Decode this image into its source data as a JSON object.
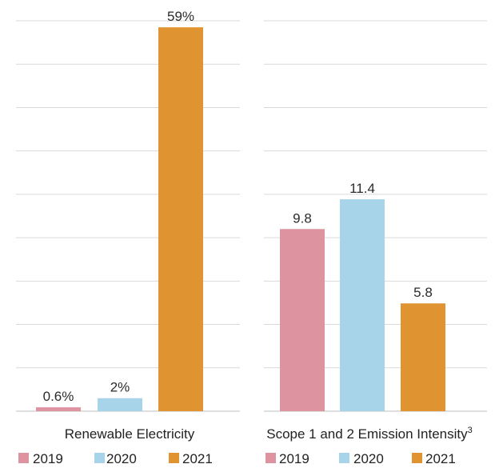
{
  "colors": {
    "2019": "#dd93a0",
    "2020": "#a8d4e9",
    "2021": "#e09431"
  },
  "chart_data": [
    {
      "type": "bar",
      "title": "Renewable Electricity",
      "title_superscript": "",
      "categories": [
        "2019",
        "2020",
        "2021"
      ],
      "values": [
        0.6,
        2,
        59
      ],
      "data_labels": [
        "0.6%",
        "2%",
        "59%"
      ],
      "ylim": [
        0,
        60
      ],
      "grid": true,
      "legend": {
        "placement": "bottom",
        "entries": [
          "2019",
          "2020",
          "2021"
        ]
      }
    },
    {
      "type": "bar",
      "title": "Scope 1 and 2 Emission Intensity",
      "title_superscript": "3",
      "categories": [
        "2019",
        "2020",
        "2021"
      ],
      "values": [
        9.8,
        11.4,
        5.8
      ],
      "data_labels": [
        "9.8",
        "11.4",
        "5.8"
      ],
      "ylim": [
        0,
        21
      ],
      "grid": true,
      "legend": {
        "placement": "bottom",
        "entries": [
          "2019",
          "2020",
          "2021"
        ]
      }
    }
  ]
}
